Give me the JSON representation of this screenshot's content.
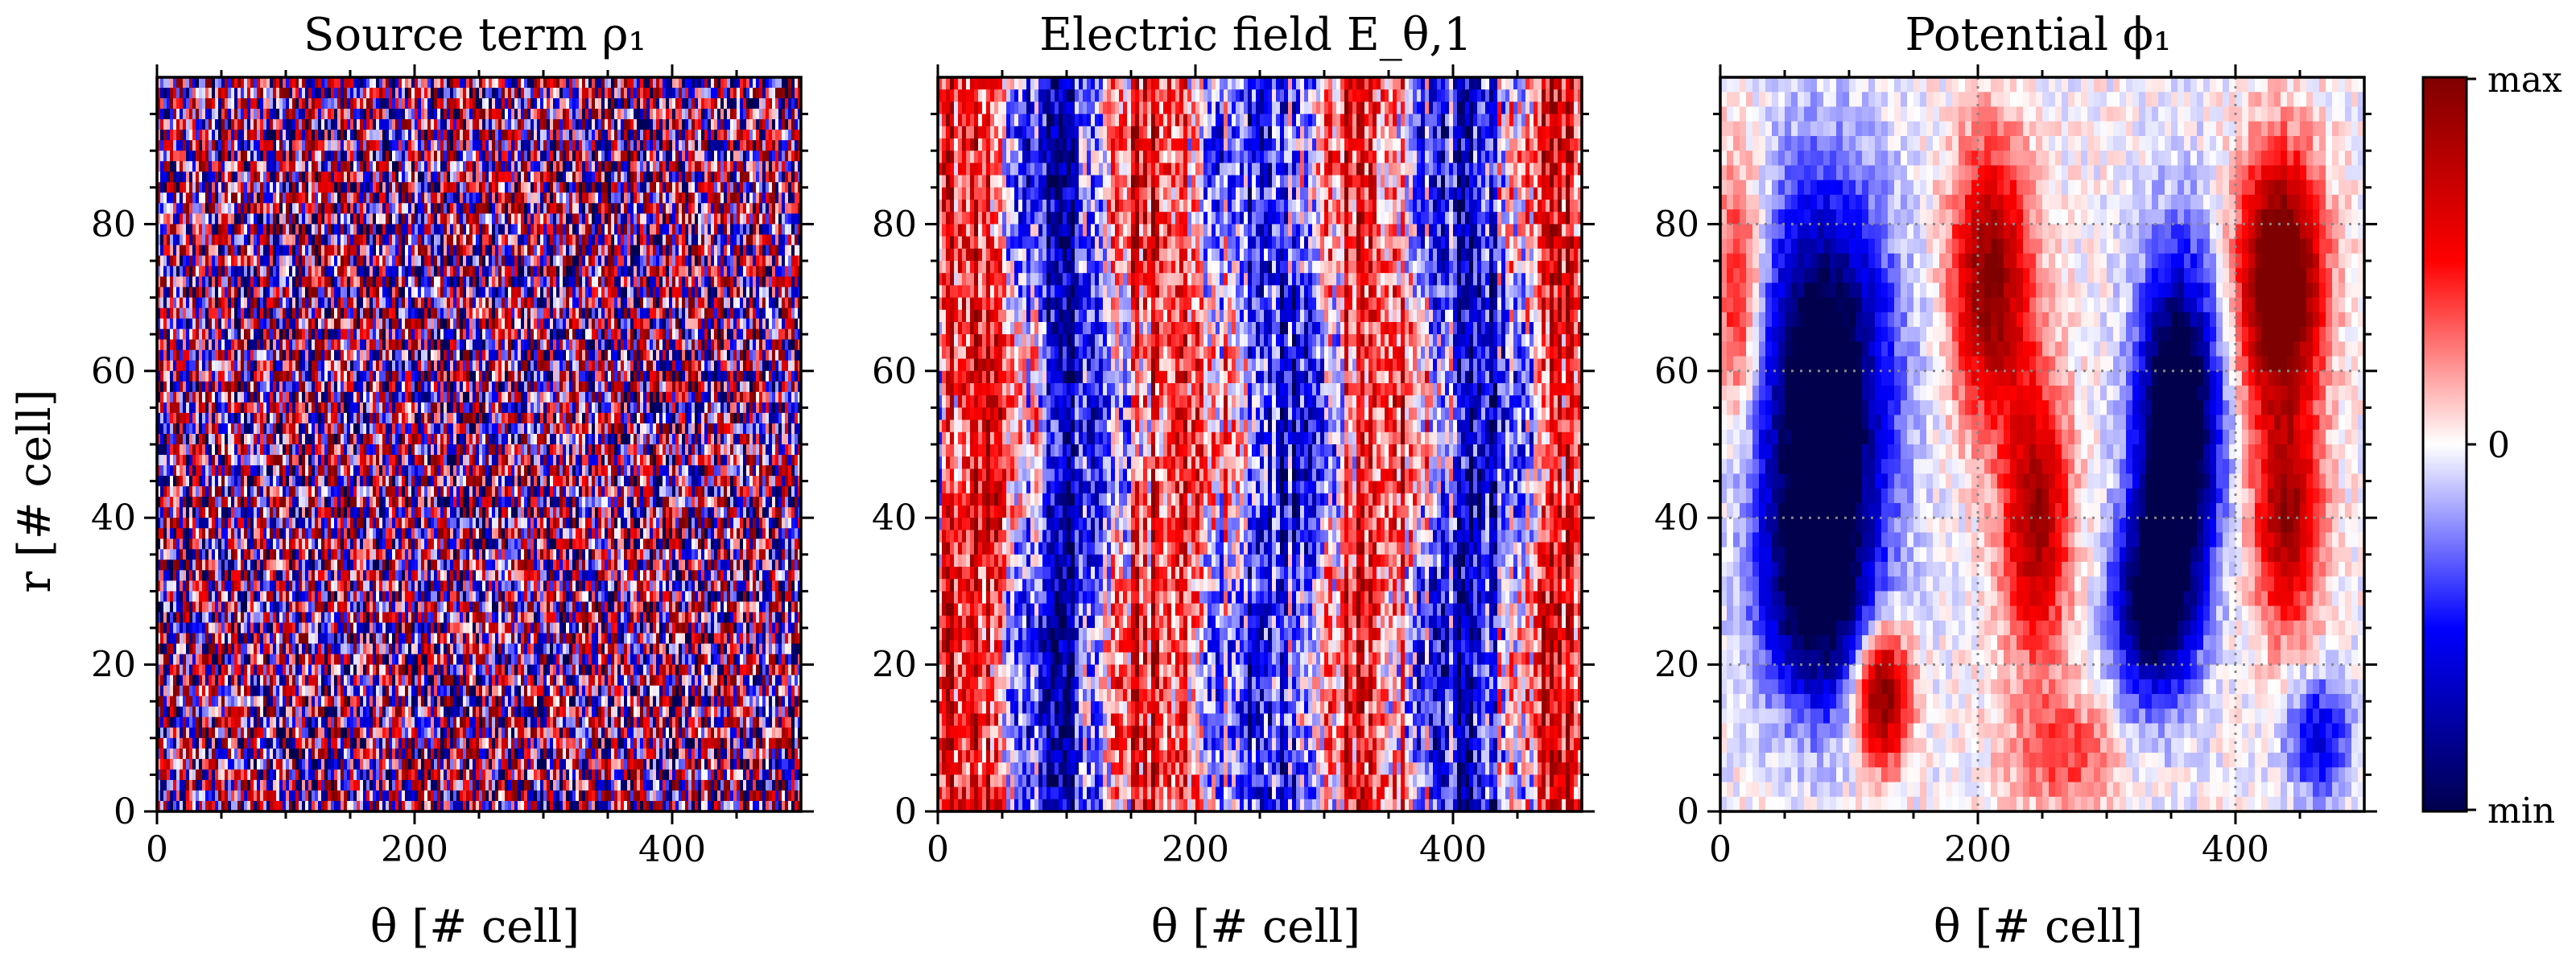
{
  "figure": {
    "colorbar": {
      "tick_labels": [
        "max",
        "0",
        "min"
      ],
      "colormap": "seismic",
      "colors": [
        "#00004c",
        "#0000ff",
        "#ffffff",
        "#ff0000",
        "#7f0000"
      ]
    }
  },
  "chart_data": [
    {
      "type": "heatmap",
      "title": "Source term ρ₁",
      "xlabel": "θ [# cell]",
      "ylabel": "r [# cell]",
      "xlim": [
        0,
        500
      ],
      "ylim": [
        0,
        100
      ],
      "xticks": [
        "0",
        "200",
        "400"
      ],
      "yticks": [
        "0",
        "20",
        "40",
        "60",
        "80"
      ],
      "grid": false,
      "description_values": {
        "pattern": "fine-scale noise",
        "value_range": [
          "min",
          "max"
        ]
      }
    },
    {
      "type": "heatmap",
      "title": "Electric field E_θ,1",
      "xlabel": "θ [# cell]",
      "ylabel": "",
      "xlim": [
        0,
        500
      ],
      "ylim": [
        0,
        100
      ],
      "xticks": [
        "0",
        "200",
        "400"
      ],
      "yticks": [
        "0",
        "20",
        "40",
        "60",
        "80"
      ],
      "grid": false,
      "description_values": {
        "pattern": "vertically streaked noise with alternating bands",
        "value_range": [
          "min",
          "max"
        ]
      }
    },
    {
      "type": "heatmap",
      "title": "Potential ϕ₁",
      "xlabel": "θ [# cell]",
      "ylabel": "",
      "xlim": [
        0,
        500
      ],
      "ylim": [
        0,
        100
      ],
      "xticks": [
        "0",
        "200",
        "400"
      ],
      "yticks": [
        "0",
        "20",
        "40",
        "60",
        "80"
      ],
      "grid": true,
      "description_values": {
        "pattern": "smooth large-scale blobs",
        "value_range": [
          "min",
          "max"
        ]
      }
    }
  ]
}
